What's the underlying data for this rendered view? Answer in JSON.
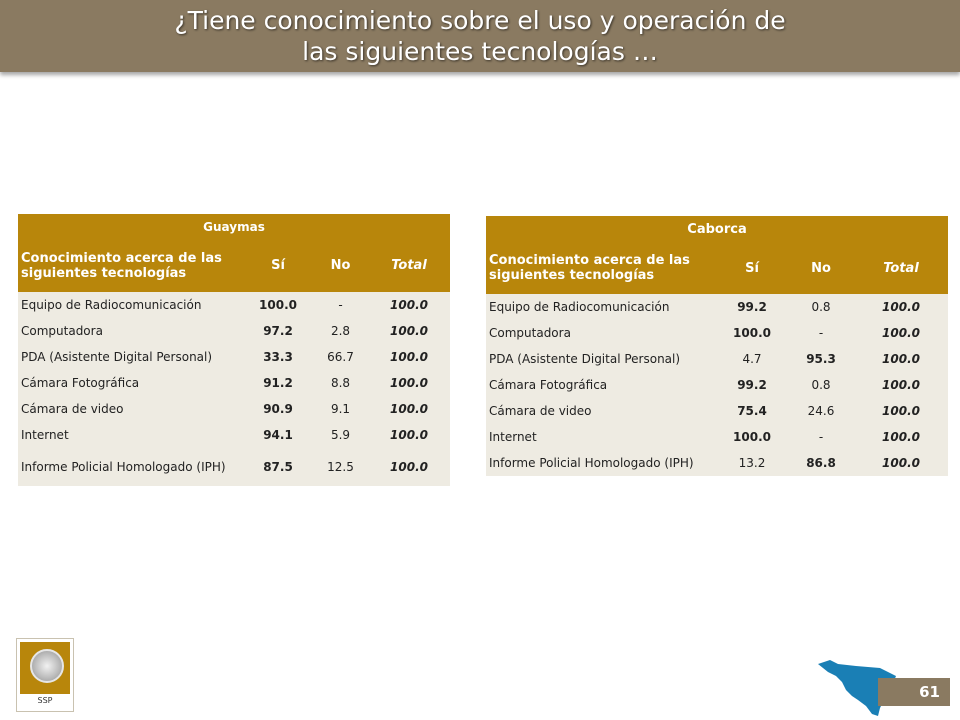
{
  "header": {
    "title_line1": "¿Tiene conocimiento sobre el uso y operación de",
    "title_line2": "las siguientes tecnologías …"
  },
  "tables": [
    {
      "title": "Guaymas",
      "columns": [
        "Conocimiento acerca de las siguientes tecnologías",
        "Sí",
        "No",
        "Total"
      ],
      "rows": [
        {
          "label": "Equipo de Radiocomunicación",
          "si": "100.0",
          "no": "-",
          "total": "100.0"
        },
        {
          "label": "Computadora",
          "si": "97.2",
          "no": "2.8",
          "total": "100.0"
        },
        {
          "label": "PDA (Asistente Digital Personal)",
          "si": "33.3",
          "no": "66.7",
          "total": "100.0"
        },
        {
          "label": "Cámara Fotográfica",
          "si": "91.2",
          "no": "8.8",
          "total": "100.0"
        },
        {
          "label": "Cámara de video",
          "si": "90.9",
          "no": "9.1",
          "total": "100.0"
        },
        {
          "label": "Internet",
          "si": "94.1",
          "no": "5.9",
          "total": "100.0"
        },
        {
          "label": "Informe Policial Homologado (IPH)",
          "si": "87.5",
          "no": "12.5",
          "total": "100.0"
        }
      ]
    },
    {
      "title": "Caborca",
      "columns": [
        "Conocimiento acerca de las siguientes tecnologías",
        "Sí",
        "No",
        "Total"
      ],
      "rows": [
        {
          "label": "Equipo de Radiocomunicación",
          "si": "99.2",
          "no": "0.8",
          "total": "100.0"
        },
        {
          "label": "Computadora",
          "si": "100.0",
          "no": "-",
          "total": "100.0"
        },
        {
          "label": "PDA (Asistente Digital Personal)",
          "si": "4.7",
          "no": "95.3",
          "total": "100.0"
        },
        {
          "label": "Cámara Fotográfica",
          "si": "99.2",
          "no": "0.8",
          "total": "100.0"
        },
        {
          "label": "Cámara de video",
          "si": "75.4",
          "no": "24.6",
          "total": "100.0"
        },
        {
          "label": "Internet",
          "si": "100.0",
          "no": "-",
          "total": "100.0"
        },
        {
          "label": "Informe Policial Homologado (IPH)",
          "si": "13.2",
          "no": "86.8",
          "total": "100.0"
        }
      ]
    }
  ],
  "footer": {
    "logo_text": "SSP",
    "page_number": "61"
  },
  "colors": {
    "header_bg": "#8a7a61",
    "table_header_bg": "#b8860b",
    "row_bg": "#eeebe2",
    "map_fill": "#1a7fb5"
  },
  "icons": [
    "ssp-seal-icon",
    "sonora-map-icon"
  ]
}
